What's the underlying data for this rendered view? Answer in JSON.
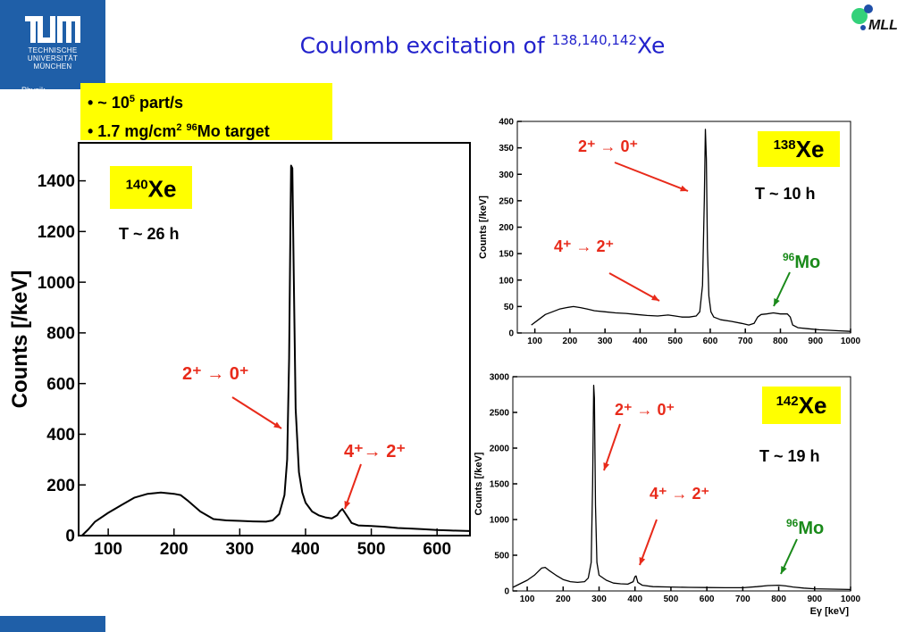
{
  "header": {
    "title_main": "Coulomb excitation of ",
    "title_sup": "138,140,142",
    "title_end": "Xe"
  },
  "logos": {
    "tum": "TUM",
    "tum_lines": [
      "TECHNISCHE",
      "UNIVERSITÄT",
      "MÜNCHEN"
    ],
    "physik": "Physik",
    "mll": "MLL"
  },
  "info": {
    "line1_pre": "• ~ 10",
    "line1_sup": "5",
    "line1_post": " part/s",
    "line2_pre": "• 1.7 mg/cm",
    "line2_sup": "2",
    "line2_sup2": "96",
    "line2_post": "Mo target"
  },
  "colors": {
    "accent_blue": "#1f5fa8",
    "title_blue": "#2222cc",
    "red": "#e82a1a",
    "green": "#1a8a1a",
    "highlight": "#ffff00"
  },
  "chart_data": [
    {
      "type": "line",
      "isotope_mass": "140",
      "isotope": "Xe",
      "halflife": "T ~ 26 h",
      "ylabel": "Counts [/keV]",
      "xlabel": "",
      "xlim": [
        55,
        650
      ],
      "ylim": [
        0,
        1550
      ],
      "xticks": [
        100,
        200,
        300,
        400,
        500,
        600
      ],
      "yticks": [
        0,
        200,
        400,
        600,
        800,
        1000,
        1200,
        1400
      ],
      "annotations": [
        "2⁺ → 0⁺",
        "4⁺→ 2⁺"
      ],
      "peaks": [
        {
          "x": 379,
          "y": 1460
        },
        {
          "x": 456,
          "y": 105
        }
      ],
      "series": [
        {
          "points": [
            [
              60,
              0
            ],
            [
              70,
              25
            ],
            [
              80,
              55
            ],
            [
              100,
              90
            ],
            [
              120,
              120
            ],
            [
              140,
              150
            ],
            [
              160,
              165
            ],
            [
              180,
              170
            ],
            [
              200,
              165
            ],
            [
              210,
              160
            ],
            [
              220,
              140
            ],
            [
              240,
              95
            ],
            [
              260,
              65
            ],
            [
              280,
              60
            ],
            [
              300,
              58
            ],
            [
              320,
              56
            ],
            [
              340,
              55
            ],
            [
              350,
              60
            ],
            [
              360,
              85
            ],
            [
              368,
              160
            ],
            [
              372,
              300
            ],
            [
              375,
              700
            ],
            [
              377,
              1200
            ],
            [
              378,
              1460
            ],
            [
              380,
              1450
            ],
            [
              382,
              1050
            ],
            [
              385,
              500
            ],
            [
              390,
              250
            ],
            [
              395,
              170
            ],
            [
              400,
              130
            ],
            [
              410,
              95
            ],
            [
              420,
              80
            ],
            [
              430,
              72
            ],
            [
              440,
              68
            ],
            [
              448,
              80
            ],
            [
              452,
              95
            ],
            [
              456,
              105
            ],
            [
              460,
              90
            ],
            [
              465,
              70
            ],
            [
              470,
              50
            ],
            [
              480,
              40
            ],
            [
              500,
              38
            ],
            [
              520,
              35
            ],
            [
              540,
              30
            ],
            [
              560,
              28
            ],
            [
              580,
              25
            ],
            [
              600,
              22
            ],
            [
              620,
              20
            ],
            [
              650,
              18
            ]
          ]
        }
      ]
    },
    {
      "type": "line",
      "isotope_mass": "138",
      "isotope": "Xe",
      "halflife": "T ~ 10 h",
      "ylabel": "Counts [/keV]",
      "xlabel": "",
      "xlim": [
        50,
        1000
      ],
      "ylim": [
        0,
        400
      ],
      "xticks": [
        100,
        200,
        300,
        400,
        500,
        600,
        700,
        800,
        900,
        1000
      ],
      "yticks": [
        0,
        50,
        100,
        150,
        200,
        250,
        300,
        350,
        400
      ],
      "annotations": [
        "2⁺ → 0⁺",
        "4⁺ → 2⁺",
        "96Mo"
      ],
      "mo_mass": "96",
      "mo_label": "Mo",
      "series": [
        {
          "points": [
            [
              90,
              15
            ],
            [
              110,
              25
            ],
            [
              130,
              35
            ],
            [
              150,
              40
            ],
            [
              170,
              45
            ],
            [
              190,
              48
            ],
            [
              210,
              50
            ],
            [
              230,
              48
            ],
            [
              250,
              45
            ],
            [
              270,
              42
            ],
            [
              300,
              40
            ],
            [
              330,
              38
            ],
            [
              360,
              37
            ],
            [
              390,
              35
            ],
            [
              420,
              33
            ],
            [
              450,
              32
            ],
            [
              480,
              34
            ],
            [
              500,
              32
            ],
            [
              520,
              30
            ],
            [
              540,
              30
            ],
            [
              560,
              32
            ],
            [
              570,
              40
            ],
            [
              578,
              90
            ],
            [
              583,
              250
            ],
            [
              586,
              385
            ],
            [
              589,
              330
            ],
            [
              592,
              160
            ],
            [
              596,
              70
            ],
            [
              602,
              40
            ],
            [
              610,
              30
            ],
            [
              630,
              25
            ],
            [
              660,
              22
            ],
            [
              690,
              18
            ],
            [
              710,
              15
            ],
            [
              725,
              18
            ],
            [
              735,
              30
            ],
            [
              745,
              35
            ],
            [
              760,
              36
            ],
            [
              780,
              38
            ],
            [
              800,
              36
            ],
            [
              820,
              36
            ],
            [
              828,
              30
            ],
            [
              835,
              15
            ],
            [
              850,
              10
            ],
            [
              880,
              8
            ],
            [
              910,
              6
            ],
            [
              940,
              5
            ],
            [
              970,
              4
            ],
            [
              1000,
              3
            ]
          ]
        }
      ]
    },
    {
      "type": "line",
      "isotope_mass": "142",
      "isotope": "Xe",
      "halflife": "T ~ 19 h",
      "ylabel": "Counts [/keV]",
      "xlabel": "Eγ [keV]",
      "xlim": [
        60,
        1000
      ],
      "ylim": [
        0,
        3000
      ],
      "xticks": [
        100,
        200,
        300,
        400,
        500,
        600,
        700,
        800,
        900,
        1000
      ],
      "yticks": [
        0,
        500,
        1000,
        1500,
        2000,
        2500,
        3000
      ],
      "annotations": [
        "2⁺ → 0⁺",
        "4⁺ → 2⁺",
        "96Mo"
      ],
      "mo_mass": "96",
      "mo_label": "Mo",
      "series": [
        {
          "points": [
            [
              60,
              50
            ],
            [
              80,
              100
            ],
            [
              100,
              150
            ],
            [
              120,
              220
            ],
            [
              140,
              320
            ],
            [
              150,
              330
            ],
            [
              160,
              290
            ],
            [
              180,
              220
            ],
            [
              200,
              160
            ],
            [
              220,
              130
            ],
            [
              240,
              120
            ],
            [
              260,
              130
            ],
            [
              270,
              180
            ],
            [
              278,
              400
            ],
            [
              282,
              1500
            ],
            [
              285,
              2880
            ],
            [
              287,
              2700
            ],
            [
              290,
              1200
            ],
            [
              294,
              400
            ],
            [
              300,
              220
            ],
            [
              320,
              150
            ],
            [
              340,
              110
            ],
            [
              360,
              100
            ],
            [
              380,
              95
            ],
            [
              395,
              130
            ],
            [
              400,
              200
            ],
            [
              403,
              210
            ],
            [
              408,
              120
            ],
            [
              420,
              80
            ],
            [
              450,
              60
            ],
            [
              500,
              55
            ],
            [
              550,
              50
            ],
            [
              600,
              48
            ],
            [
              650,
              45
            ],
            [
              700,
              45
            ],
            [
              740,
              60
            ],
            [
              770,
              75
            ],
            [
              800,
              80
            ],
            [
              820,
              70
            ],
            [
              840,
              55
            ],
            [
              870,
              40
            ],
            [
              900,
              30
            ],
            [
              950,
              25
            ],
            [
              1000,
              20
            ]
          ]
        }
      ]
    }
  ]
}
